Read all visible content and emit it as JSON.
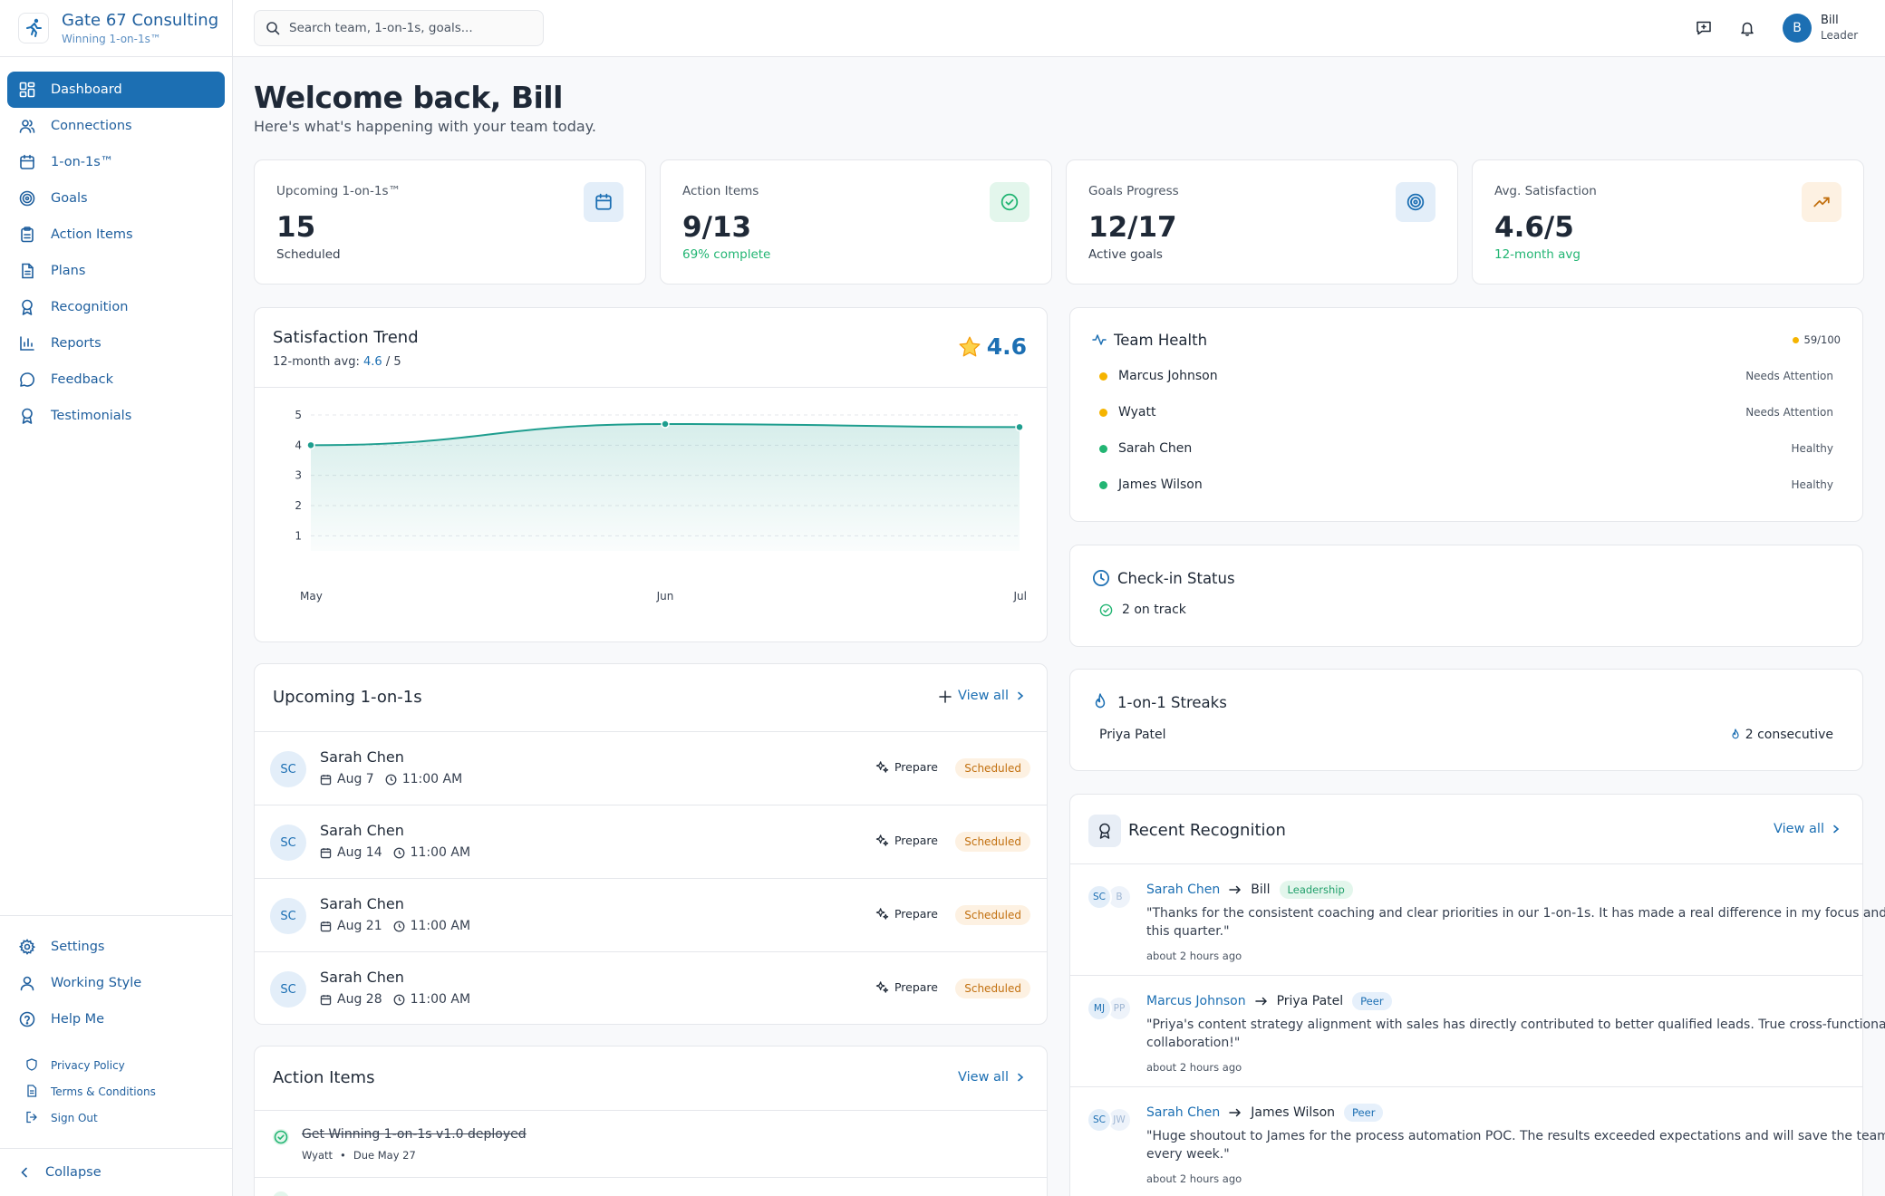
{
  "brand": {
    "name": "Gate 67 Consulting",
    "tagline": "Winning 1-on-1s™"
  },
  "nav": [
    {
      "label": "Dashboard",
      "icon": "dashboard-icon",
      "active": true
    },
    {
      "label": "Connections",
      "icon": "users-icon"
    },
    {
      "label": "1-on-1s™",
      "icon": "calendar-icon"
    },
    {
      "label": "Goals",
      "icon": "target-icon"
    },
    {
      "label": "Action Items",
      "icon": "clipboard-icon"
    },
    {
      "label": "Plans",
      "icon": "document-icon"
    },
    {
      "label": "Recognition",
      "icon": "award-icon"
    },
    {
      "label": "Reports",
      "icon": "bar-chart-icon"
    },
    {
      "label": "Feedback",
      "icon": "message-icon"
    },
    {
      "label": "Testimonials",
      "icon": "award-icon"
    }
  ],
  "bottom_nav": [
    {
      "label": "Settings",
      "icon": "gear-icon"
    },
    {
      "label": "Working Style",
      "icon": "user-icon"
    },
    {
      "label": "Help Me",
      "icon": "help-icon"
    }
  ],
  "legal": [
    {
      "label": "Privacy Policy",
      "icon": "shield-icon"
    },
    {
      "label": "Terms & Conditions",
      "icon": "document-icon"
    },
    {
      "label": "Sign Out",
      "icon": "sign-out-icon"
    }
  ],
  "collapse_label": "Collapse",
  "search": {
    "placeholder": "Search team, 1-on-1s, goals..."
  },
  "user": {
    "initial": "B",
    "name": "Bill",
    "role": "Leader"
  },
  "welcome": {
    "title": "Welcome back, Bill",
    "subtitle": "Here's what's happening with your team today."
  },
  "stats": [
    {
      "label": "Upcoming 1-on-1s™",
      "value": "15",
      "sub": "Scheduled",
      "icon": "calendar-icon",
      "icon_color": "#1c6fb3",
      "icon_bg": "#e3eef9"
    },
    {
      "label": "Action Items",
      "value": "9/13",
      "sub": "69% complete",
      "icon": "check-circle-icon",
      "icon_color": "#22b573",
      "icon_bg": "#e3f6ec"
    },
    {
      "label": "Goals Progress",
      "value": "12/17",
      "sub": "Active goals",
      "icon": "target-icon",
      "icon_color": "#1c6fb3",
      "icon_bg": "#e3eef9"
    },
    {
      "label": "Avg. Satisfaction",
      "value": "4.6/5",
      "sub": "12-month avg",
      "icon": "trending-up-icon",
      "icon_color": "#c2700f",
      "icon_bg": "#fdf1e2"
    }
  ],
  "trend": {
    "title": "Satisfaction Trend",
    "sub_prefix": "12-month avg:",
    "sub_value": "4.6",
    "sub_suffix": "/ 5",
    "score": "4.6"
  },
  "chart_data": {
    "type": "area",
    "title": "Satisfaction Trend",
    "categories": [
      "May",
      "Jun",
      "Jul"
    ],
    "values": [
      4.0,
      4.7,
      4.6
    ],
    "ylim": [
      0.5,
      5
    ],
    "yticks": [
      1,
      2,
      3,
      4,
      5
    ],
    "grid": true,
    "color": "#1f9e8f"
  },
  "upcoming": {
    "title": "Upcoming 1-on-1s",
    "view_all": "View all",
    "prepare_label": "Prepare",
    "rows": [
      {
        "initials": "SC",
        "name": "Sarah Chen",
        "date": "Aug 7",
        "time": "11:00 AM",
        "status": "Scheduled"
      },
      {
        "initials": "SC",
        "name": "Sarah Chen",
        "date": "Aug 14",
        "time": "11:00 AM",
        "status": "Scheduled"
      },
      {
        "initials": "SC",
        "name": "Sarah Chen",
        "date": "Aug 21",
        "time": "11:00 AM",
        "status": "Scheduled"
      },
      {
        "initials": "SC",
        "name": "Sarah Chen",
        "date": "Aug 28",
        "time": "11:00 AM",
        "status": "Scheduled"
      }
    ]
  },
  "action_items": {
    "title": "Action Items",
    "view_all": "View all",
    "items": [
      {
        "title": "Get Winning 1-on-1s v1.0 deployed",
        "owner": "Wyatt",
        "due": "Due May 27",
        "done": true
      }
    ]
  },
  "team_health": {
    "title": "Team Health",
    "score": "59/100",
    "members": [
      {
        "name": "Marcus Johnson",
        "status": "Needs Attention",
        "color": "#f5b400"
      },
      {
        "name": "Wyatt",
        "status": "Needs Attention",
        "color": "#f5b400"
      },
      {
        "name": "Sarah Chen",
        "status": "Healthy",
        "color": "#22b573"
      },
      {
        "name": "James Wilson",
        "status": "Healthy",
        "color": "#22b573"
      }
    ]
  },
  "checkin": {
    "title": "Check-in Status",
    "status": "2 on track"
  },
  "streaks": {
    "title": "1-on-1 Streaks",
    "name": "Priya Patel",
    "count": "2 consecutive"
  },
  "recognition": {
    "title": "Recent Recognition",
    "view_all": "View all",
    "items": [
      {
        "from_initials": "SC",
        "to_initials": "B",
        "from": "Sarah Chen",
        "to": "Bill",
        "tag": "Leadership",
        "quote": "\"Thanks for the consistent coaching and clear priorities in our 1-on-1s. It has made a real difference in my focus and delivery this quarter.\"",
        "time": "about 2 hours ago"
      },
      {
        "from_initials": "MJ",
        "to_initials": "PP",
        "from": "Marcus Johnson",
        "to": "Priya Patel",
        "tag": "Peer",
        "quote": "\"Priya's content strategy alignment with sales has directly contributed to better qualified leads. True cross-functional collaboration!\"",
        "time": "about 2 hours ago"
      },
      {
        "from_initials": "SC",
        "to_initials": "JW",
        "from": "Sarah Chen",
        "to": "James Wilson",
        "tag": "Peer",
        "quote": "\"Huge shoutout to James for the process automation POC. The results exceeded expectations and will save the team hours every week.\"",
        "time": "about 2 hours ago"
      }
    ]
  }
}
